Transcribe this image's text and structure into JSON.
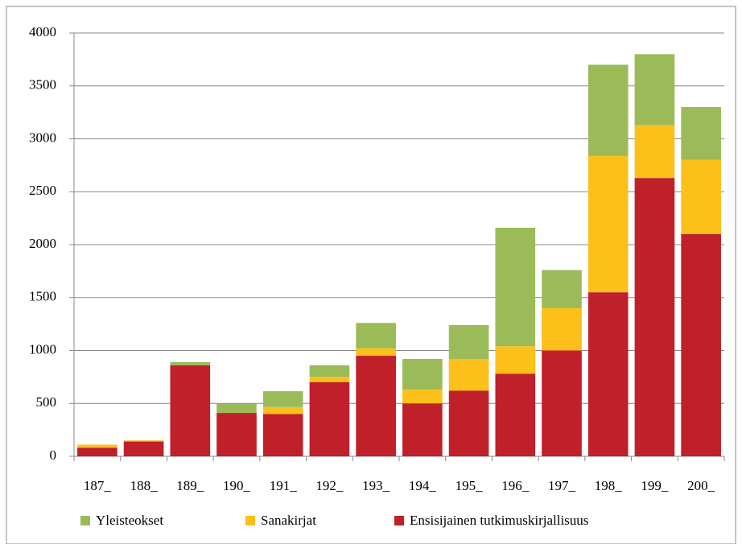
{
  "chart_data": {
    "type": "stacked-bar",
    "categories": [
      "187_",
      "188_",
      "189_",
      "190_",
      "191_",
      "192_",
      "193_",
      "194_",
      "195_",
      "196_",
      "197_",
      "198_",
      "199_",
      "200_"
    ],
    "series": [
      {
        "name": "Yleisteokset",
        "color": "#9bbb59",
        "values": [
          0,
          0,
          30,
          90,
          150,
          110,
          240,
          290,
          320,
          1120,
          360,
          860,
          670,
          500
        ]
      },
      {
        "name": "Sanakirjat",
        "color": "#fdbf1a",
        "values": [
          30,
          10,
          0,
          0,
          65,
          50,
          70,
          130,
          300,
          260,
          400,
          1290,
          500,
          700
        ]
      },
      {
        "name": "Ensisijainen tutkimuskirjallisuus",
        "color": "#c0202a",
        "values": [
          80,
          140,
          860,
          410,
          400,
          700,
          950,
          500,
          620,
          780,
          1000,
          1550,
          2630,
          2100
        ]
      }
    ],
    "ylim": [
      0,
      4000
    ],
    "yticks": [
      0,
      500,
      1000,
      1500,
      2000,
      2500,
      3000,
      3500,
      4000
    ],
    "grid": true,
    "legend": "bottom"
  }
}
